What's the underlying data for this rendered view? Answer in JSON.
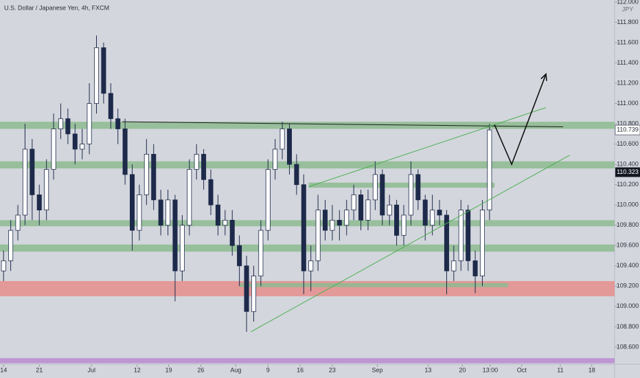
{
  "chart_data": {
    "type": "candlestick",
    "title": "U.S. Dollar / Japanese Yen, 4h, FXCM",
    "currency": "JPY",
    "x": [
      0,
      1,
      2,
      3,
      4,
      5,
      6,
      7,
      8,
      9,
      10,
      11,
      12,
      13,
      14,
      15,
      16,
      17,
      18,
      19,
      20,
      21,
      22,
      23,
      24,
      25,
      26,
      27,
      28,
      29,
      30,
      31,
      32,
      33,
      34,
      35,
      36,
      37,
      38,
      39,
      40,
      41,
      42,
      43,
      44,
      45,
      46,
      47,
      48,
      49,
      50,
      51,
      52,
      53,
      54,
      55,
      56,
      57,
      58,
      59,
      60,
      61,
      62,
      63,
      64,
      65,
      66,
      67,
      68
    ],
    "open": [
      109.35,
      109.45,
      109.75,
      109.9,
      110.55,
      110.1,
      109.95,
      110.35,
      110.75,
      110.85,
      110.7,
      110.55,
      110.6,
      111.0,
      111.55,
      111.1,
      110.85,
      110.75,
      110.3,
      109.75,
      110.1,
      110.5,
      110.05,
      109.8,
      110.05,
      109.35,
      109.8,
      110.35,
      110.5,
      110.25,
      110.0,
      109.8,
      109.85,
      109.6,
      109.4,
      108.95,
      109.3,
      109.75,
      110.35,
      110.55,
      110.75,
      110.4,
      110.2,
      109.35,
      109.45,
      109.95,
      109.75,
      109.85,
      109.8,
      109.95,
      110.1,
      109.85,
      110.05,
      110.3,
      109.9,
      110.0,
      109.7,
      109.9,
      110.3,
      110.05,
      109.8,
      109.95,
      109.9,
      109.35,
      109.45,
      109.95,
      109.45,
      109.3,
      109.95
    ],
    "high": [
      109.55,
      109.85,
      110.0,
      110.8,
      110.65,
      110.2,
      110.45,
      110.9,
      111.0,
      110.95,
      110.8,
      110.75,
      111.2,
      111.67,
      111.6,
      111.2,
      110.95,
      110.85,
      110.4,
      110.2,
      110.65,
      110.6,
      110.15,
      110.15,
      110.1,
      109.9,
      110.45,
      110.6,
      110.55,
      110.35,
      110.1,
      109.95,
      109.95,
      109.7,
      109.5,
      109.4,
      109.85,
      110.45,
      110.65,
      110.82,
      110.8,
      110.5,
      110.3,
      109.6,
      110.1,
      110.05,
      110.0,
      109.95,
      110.05,
      110.2,
      110.15,
      110.15,
      110.43,
      110.35,
      110.1,
      110.05,
      110.0,
      110.43,
      110.35,
      110.1,
      110.1,
      110.05,
      109.95,
      109.6,
      110.05,
      110.0,
      109.55,
      110.05,
      110.8
    ],
    "low": [
      109.25,
      109.35,
      109.65,
      109.8,
      109.85,
      109.8,
      109.85,
      110.25,
      110.65,
      110.6,
      110.4,
      110.45,
      110.5,
      110.9,
      111.0,
      110.75,
      110.6,
      110.2,
      109.55,
      109.65,
      110.0,
      109.95,
      109.7,
      109.7,
      109.05,
      109.25,
      109.7,
      110.25,
      110.15,
      109.9,
      109.7,
      109.7,
      109.5,
      109.2,
      108.75,
      108.85,
      109.2,
      109.65,
      110.25,
      110.45,
      110.3,
      110.1,
      109.12,
      109.15,
      109.35,
      109.65,
      109.65,
      109.65,
      109.7,
      109.85,
      109.75,
      109.75,
      109.95,
      109.8,
      109.8,
      109.6,
      109.6,
      109.8,
      109.95,
      109.65,
      109.7,
      109.8,
      109.12,
      109.25,
      109.35,
      109.35,
      109.13,
      109.2,
      109.85
    ],
    "close": [
      109.45,
      109.75,
      109.9,
      110.55,
      110.1,
      109.95,
      110.35,
      110.75,
      110.85,
      110.7,
      110.55,
      110.6,
      111.0,
      111.55,
      111.1,
      110.85,
      110.75,
      110.3,
      109.75,
      110.1,
      110.5,
      110.05,
      109.8,
      110.05,
      109.35,
      109.8,
      110.35,
      110.5,
      110.25,
      110.0,
      109.8,
      109.85,
      109.6,
      109.4,
      108.95,
      109.3,
      109.75,
      110.35,
      110.55,
      110.75,
      110.4,
      110.2,
      109.35,
      109.45,
      109.95,
      109.75,
      109.85,
      109.8,
      109.95,
      110.1,
      109.85,
      110.05,
      110.3,
      109.9,
      110.0,
      109.7,
      109.9,
      110.3,
      110.05,
      109.8,
      109.95,
      109.9,
      109.35,
      109.45,
      109.95,
      109.45,
      109.3,
      109.95,
      110.739
    ],
    "up_color": "#ffffff",
    "down_color": "#1e2a4a",
    "wick_color": "#1e2a4a",
    "xlim": [
      -0.5,
      85.5
    ],
    "xticks": [
      {
        "value": 0,
        "label": "14"
      },
      {
        "value": 5,
        "label": "21"
      },
      {
        "value": 12.3,
        "label": "Jul"
      },
      {
        "value": 18.7,
        "label": "12"
      },
      {
        "value": 23.1,
        "label": "19"
      },
      {
        "value": 27.6,
        "label": "26"
      },
      {
        "value": 32.5,
        "label": "Aug"
      },
      {
        "value": 37,
        "label": "9"
      },
      {
        "value": 41.5,
        "label": "16"
      },
      {
        "value": 46,
        "label": "23"
      },
      {
        "value": 52.3,
        "label": "Sep"
      },
      {
        "value": 59.4,
        "label": "13"
      },
      {
        "value": 64.2,
        "label": "20"
      },
      {
        "value": 68.1,
        "label": "13:00"
      },
      {
        "value": 72.5,
        "label": "Oct"
      },
      {
        "value": 77.9,
        "label": "11"
      },
      {
        "value": 82.3,
        "label": "18"
      }
    ],
    "ylim": [
      108.43,
      112.02
    ],
    "yticks": [
      {
        "value": 108.6,
        "label": "108.600"
      },
      {
        "value": 108.8,
        "label": "108.800"
      },
      {
        "value": 109.0,
        "label": "109.000"
      },
      {
        "value": 109.2,
        "label": "109.200"
      },
      {
        "value": 109.4,
        "label": "109.400"
      },
      {
        "value": 109.6,
        "label": "109.600"
      },
      {
        "value": 109.8,
        "label": "109.800"
      },
      {
        "value": 110.0,
        "label": "110.000"
      },
      {
        "value": 110.2,
        "label": "110.200"
      },
      {
        "value": 110.4,
        "label": "110.400"
      },
      {
        "value": 110.6,
        "label": "110.600"
      },
      {
        "value": 110.8,
        "label": "110.800"
      },
      {
        "value": 111.0,
        "label": "111.000"
      },
      {
        "value": 111.2,
        "label": "111.200"
      },
      {
        "value": 111.4,
        "label": "111.400"
      },
      {
        "value": 111.6,
        "label": "111.600"
      },
      {
        "value": 111.8,
        "label": "111.800"
      },
      {
        "value": 112.0,
        "label": "112.000"
      }
    ],
    "grid": false,
    "last_price": 110.739,
    "marker_price": 110.323,
    "zones": [
      {
        "low": 110.75,
        "high": 110.82,
        "color": "#8dbb8f"
      },
      {
        "low": 110.36,
        "high": 110.43,
        "color": "#8dbb8f"
      },
      {
        "low": 110.17,
        "high": 110.22,
        "color": "#8dbb8f",
        "x": [
          42.7,
          68.7
        ]
      },
      {
        "low": 109.79,
        "high": 109.85,
        "color": "#8dbb8f"
      },
      {
        "low": 109.54,
        "high": 109.61,
        "color": "#8dbb8f"
      },
      {
        "low": 109.1,
        "high": 109.25,
        "color": "#e48e8c"
      },
      {
        "low": 109.19,
        "high": 109.23,
        "color": "#8dbb8f",
        "x": [
          33.1,
          70.6
        ]
      },
      {
        "low": 108.44,
        "high": 108.49,
        "color": "#b98bd0"
      }
    ],
    "lines": [
      {
        "color": "#1a1a1a",
        "x": [
          16.6,
          78.3
        ],
        "y": [
          110.82,
          110.77
        ]
      },
      {
        "color": "#4caf50",
        "x": [
          34.6,
          79.2
        ],
        "y": [
          108.75,
          110.49
        ]
      },
      {
        "color": "#4caf50",
        "x": [
          42.7,
          75.9
        ],
        "y": [
          110.18,
          110.96
        ]
      },
      {
        "color": "#111111",
        "x": [
          68.7,
          71.1,
          75.9
        ],
        "y": [
          110.79,
          110.4,
          111.29
        ],
        "arrow": true
      }
    ]
  }
}
